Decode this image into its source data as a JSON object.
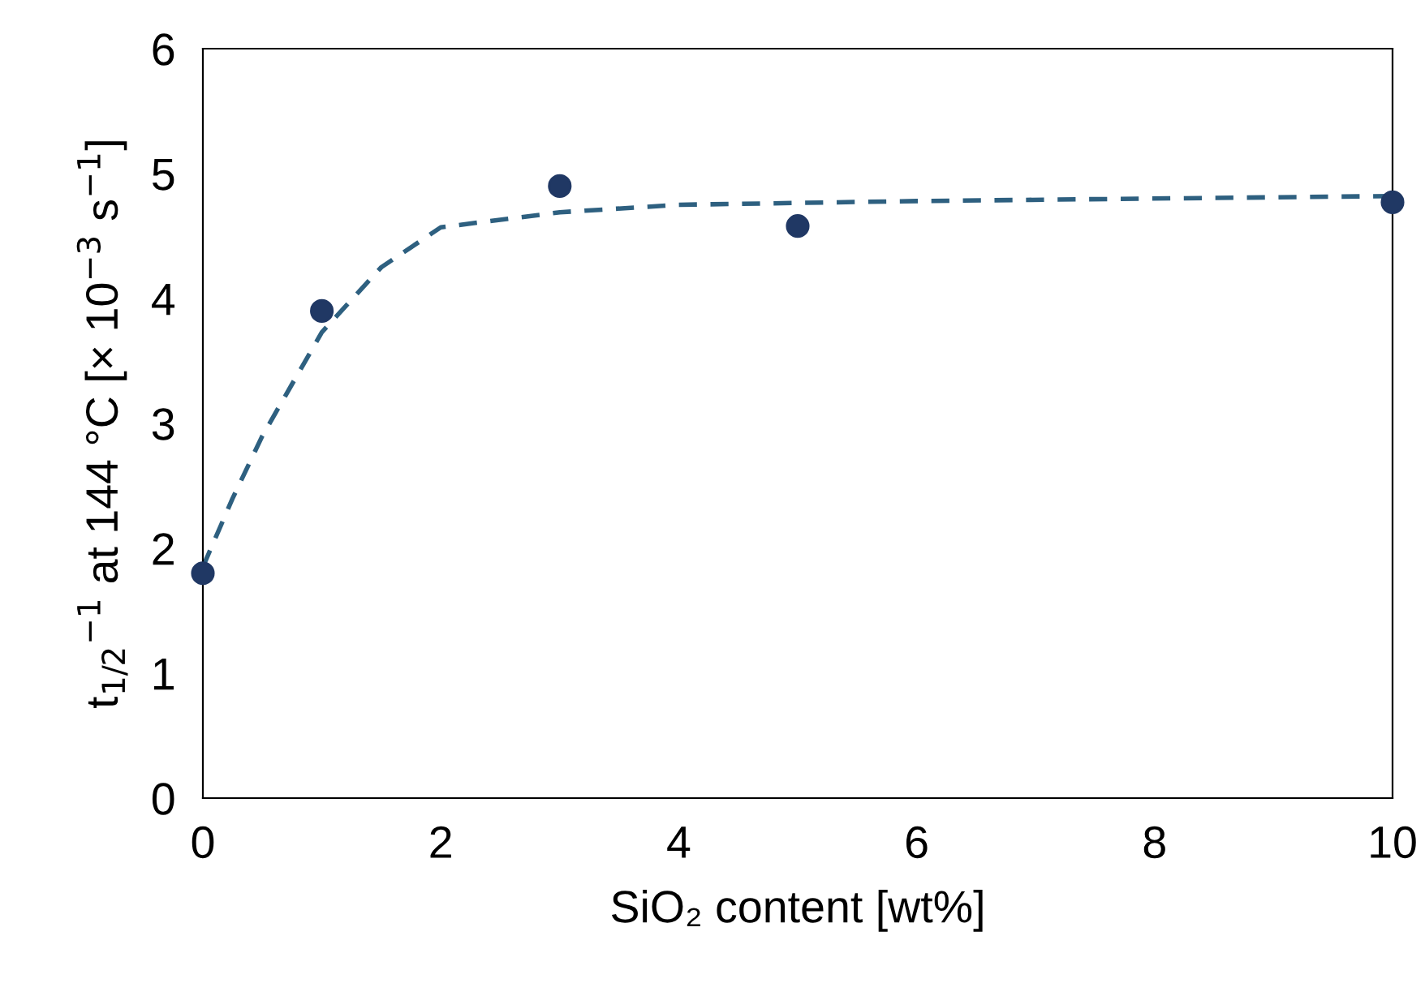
{
  "chart_data": {
    "type": "scatter",
    "xlabel": "SiO₂ content [wt%]",
    "ylabel": "t$_{1/2}$$^{−1}$ at 144 °C [× 10$^{−3}$ s$^{−1}$]",
    "series": [
      {
        "color": "#203864",
        "marker": "circle",
        "x": [
          0,
          1,
          3,
          5,
          10
        ],
        "values": [
          1.8,
          3.9,
          4.9,
          4.58,
          4.77
        ]
      },
      {
        "type": "line",
        "color": "#2e6080",
        "line_style": "dashed",
        "marker": "none",
        "x": [
          0,
          0.25,
          0.5,
          1,
          1.5,
          2,
          3,
          4,
          6,
          10
        ],
        "values": [
          1.85,
          2.4,
          2.9,
          3.73,
          4.25,
          4.57,
          4.69,
          4.75,
          4.78,
          4.82
        ]
      }
    ],
    "xlim": [
      0,
      10
    ],
    "ylim": [
      0,
      6
    ],
    "xticks": [
      0,
      2,
      4,
      6,
      8,
      10
    ],
    "yticks": [
      0,
      1,
      2,
      3,
      4,
      5,
      6
    ],
    "grid": false,
    "legend": false
  }
}
